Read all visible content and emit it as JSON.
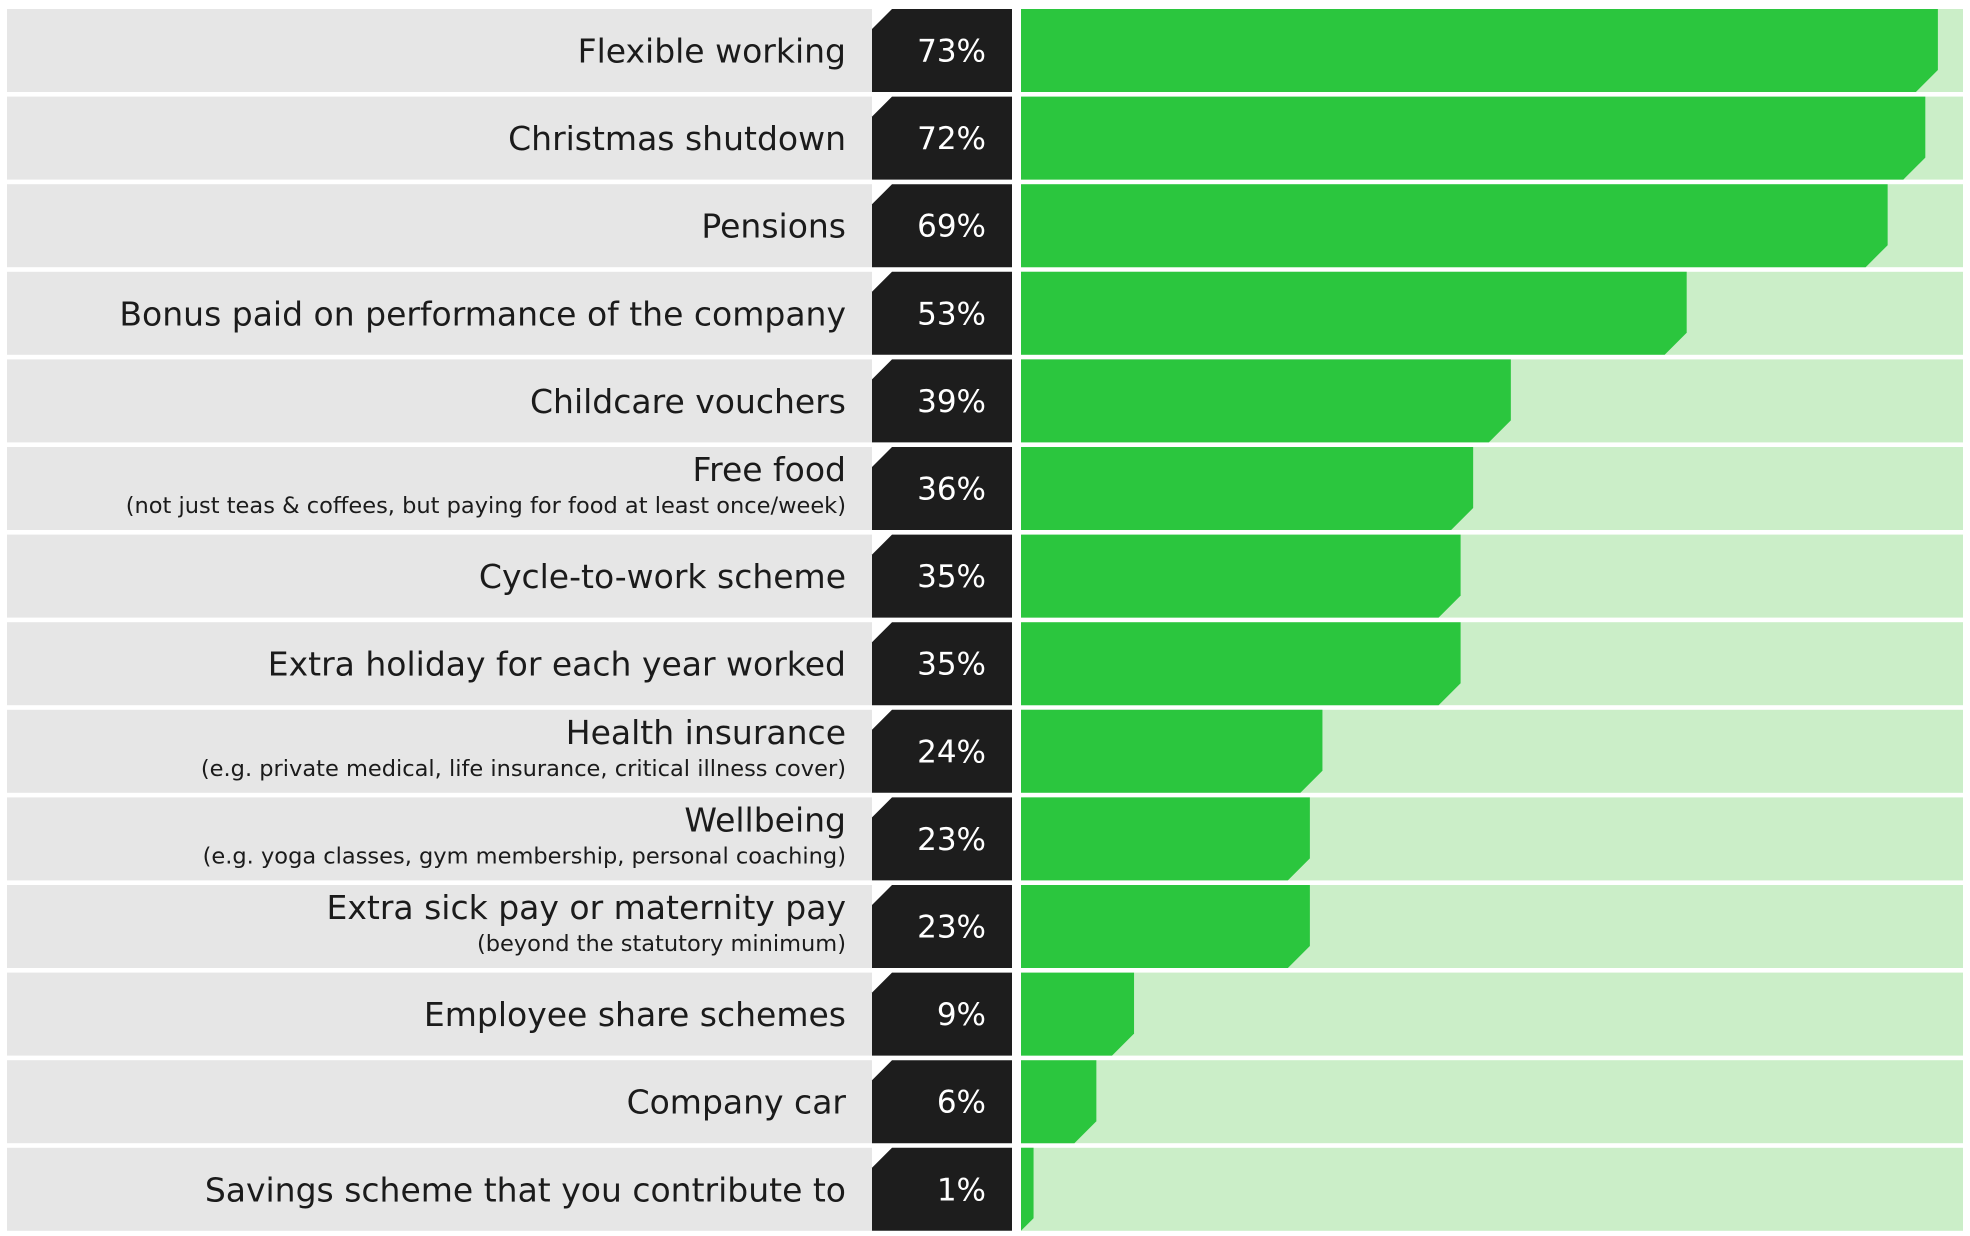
{
  "chart_data": {
    "type": "bar",
    "orientation": "horizontal",
    "title": "",
    "xlabel": "",
    "ylabel": "",
    "xlim": [
      0,
      75
    ],
    "grid": false,
    "legend": "none",
    "colors": {
      "bar": "#2bc63e",
      "track": "#cbeec8",
      "label_background": "#e6e6e6",
      "value_tab": "#1d1d1d",
      "value_text": "#ffffff",
      "label_text": "#1b1b1b"
    },
    "categories": [
      {
        "label": "Flexible working",
        "sublabel": "",
        "value": 73,
        "value_label": "73%"
      },
      {
        "label": "Christmas shutdown",
        "sublabel": "",
        "value": 72,
        "value_label": "72%"
      },
      {
        "label": "Pensions",
        "sublabel": "",
        "value": 69,
        "value_label": "69%"
      },
      {
        "label": "Bonus paid on performance of the company",
        "sublabel": "",
        "value": 53,
        "value_label": "53%"
      },
      {
        "label": "Childcare vouchers",
        "sublabel": "",
        "value": 39,
        "value_label": "39%"
      },
      {
        "label": "Free food",
        "sublabel": "(not just teas & coffees, but paying for food at least once/week)",
        "value": 36,
        "value_label": "36%"
      },
      {
        "label": "Cycle-to-work scheme",
        "sublabel": "",
        "value": 35,
        "value_label": "35%"
      },
      {
        "label": "Extra holiday for each year worked",
        "sublabel": "",
        "value": 35,
        "value_label": "35%"
      },
      {
        "label": "Health insurance",
        "sublabel": "(e.g. private medical, life insurance, critical illness cover)",
        "value": 24,
        "value_label": "24%"
      },
      {
        "label": "Wellbeing",
        "sublabel": "(e.g. yoga classes, gym membership, personal coaching)",
        "value": 23,
        "value_label": "23%"
      },
      {
        "label": "Extra sick pay or maternity pay",
        "sublabel": "(beyond the statutory minimum)",
        "value": 23,
        "value_label": "23%"
      },
      {
        "label": "Employee share schemes",
        "sublabel": "",
        "value": 9,
        "value_label": "9%"
      },
      {
        "label": "Company car",
        "sublabel": "",
        "value": 6,
        "value_label": "6%"
      },
      {
        "label": "Savings scheme that you contribute to",
        "sublabel": "",
        "value": 1,
        "value_label": "1%"
      }
    ]
  }
}
